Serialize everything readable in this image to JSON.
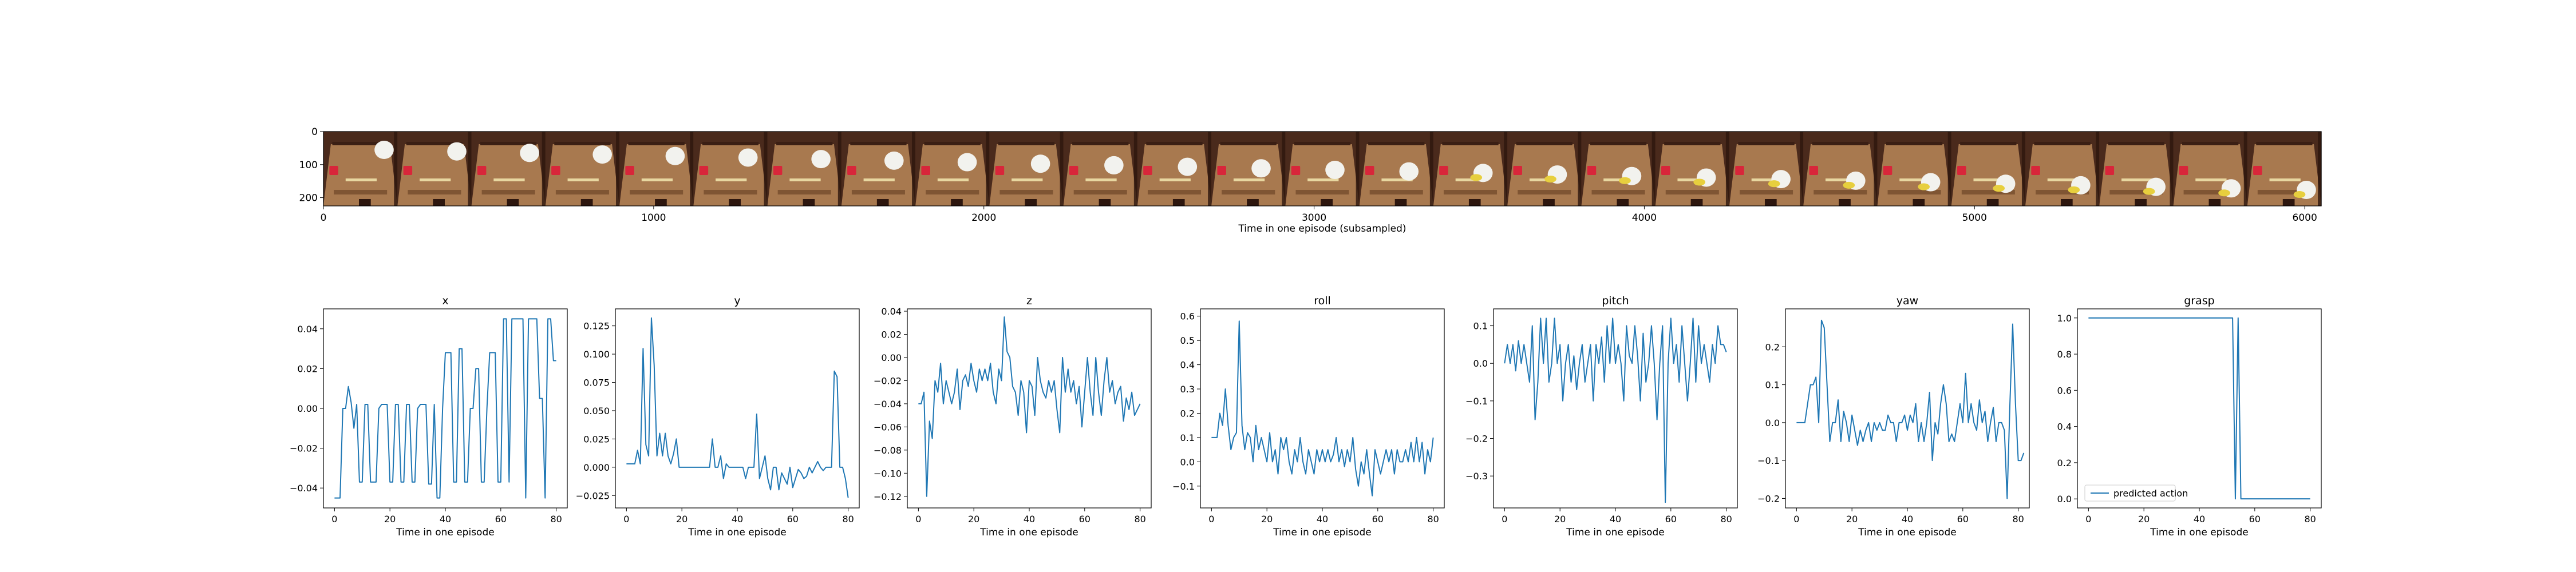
{
  "filmstrip": {
    "xlabel": "Time in one episode (subsampled)",
    "x_ticks": [
      0,
      1000,
      2000,
      3000,
      4000,
      5000,
      6000
    ],
    "y_ticks": [
      0,
      100,
      200
    ],
    "xlim": [
      0,
      6050
    ],
    "ylim": [
      0,
      225
    ],
    "frame_count": 27,
    "colors": {
      "wall": "#4a2a1c",
      "table": "#a8794f",
      "table_dark": "#7f5533",
      "rail": "#3b1f14",
      "cube": "#d8263a",
      "cloth": "#f2f2ee",
      "shadow": "#2d160e",
      "banana": "#e7cf3e"
    }
  },
  "chart_data": [
    {
      "type": "line",
      "title": "x",
      "xlabel": "Time in one episode",
      "ylabel": "",
      "xlim": [
        -4,
        84
      ],
      "ylim": [
        -0.05,
        0.05
      ],
      "x_ticks": [
        0,
        20,
        40,
        60,
        80
      ],
      "y_ticks": [
        -0.04,
        -0.02,
        0.0,
        0.02,
        0.04
      ],
      "y_tick_labels": [
        "−0.04",
        "−0.02",
        "0.00",
        "0.02",
        "0.04"
      ],
      "series": [
        {
          "values": [
            -0.045,
            -0.045,
            -0.045,
            0.0,
            0.0,
            0.011,
            0.003,
            -0.01,
            0.002,
            -0.037,
            -0.037,
            0.002,
            0.002,
            -0.037,
            -0.037,
            -0.037,
            0.0,
            0.002,
            0.002,
            0.002,
            -0.037,
            -0.037,
            0.002,
            0.002,
            -0.037,
            -0.037,
            0.002,
            0.002,
            -0.037,
            -0.037,
            0.0,
            0.002,
            0.002,
            0.002,
            -0.038,
            -0.038,
            0.002,
            -0.045,
            -0.045,
            0.0,
            0.028,
            0.028,
            0.028,
            -0.037,
            -0.037,
            0.03,
            0.03,
            -0.037,
            -0.037,
            0.0,
            0.0,
            0.02,
            0.02,
            -0.037,
            -0.037,
            0.0,
            0.028,
            0.028,
            0.028,
            -0.037,
            -0.037,
            0.045,
            0.045,
            -0.037,
            0.045,
            0.045,
            0.045,
            0.045,
            0.045,
            -0.045,
            0.045,
            0.045,
            0.045,
            0.045,
            0.005,
            0.005,
            -0.045,
            0.045,
            0.045,
            0.024,
            0.024
          ]
        }
      ]
    },
    {
      "type": "line",
      "title": "y",
      "xlabel": "Time in one episode",
      "ylabel": "",
      "xlim": [
        -4,
        84
      ],
      "ylim": [
        -0.036,
        0.14
      ],
      "x_ticks": [
        0,
        20,
        40,
        60,
        80
      ],
      "y_ticks": [
        -0.025,
        0.0,
        0.025,
        0.05,
        0.075,
        0.1,
        0.125
      ],
      "y_tick_labels": [
        "−0.025",
        "0.000",
        "0.025",
        "0.050",
        "0.075",
        "0.100",
        "0.125"
      ],
      "series": [
        {
          "values": [
            0.003,
            0.003,
            0.003,
            0.003,
            0.015,
            0.003,
            0.105,
            0.02,
            0.01,
            0.132,
            0.09,
            0.01,
            0.03,
            0.01,
            0.03,
            0.01,
            0.003,
            0.012,
            0.025,
            0.0,
            0.0,
            0.0,
            0.0,
            0.0,
            0.0,
            0.0,
            0.0,
            0.0,
            0.0,
            0.0,
            0.0,
            0.025,
            0.0,
            0.0,
            0.01,
            -0.01,
            0.003,
            0.0,
            0.0,
            0.0,
            0.0,
            0.0,
            0.0,
            -0.01,
            0.0,
            0.0,
            0.0,
            0.047,
            -0.01,
            0.0,
            0.01,
            -0.01,
            -0.02,
            0.0,
            0.0,
            -0.02,
            -0.005,
            -0.01,
            -0.015,
            0.0,
            -0.018,
            -0.01,
            -0.002,
            -0.005,
            -0.01,
            -0.008,
            0.0,
            -0.005,
            0.0,
            0.005,
            0.0,
            -0.003,
            0.0,
            0.0,
            0.0,
            0.085,
            0.08,
            0.0,
            0.0,
            -0.01,
            -0.027
          ]
        }
      ]
    },
    {
      "type": "line",
      "title": "z",
      "xlabel": "Time in one episode",
      "ylabel": "",
      "xlim": [
        -4,
        84
      ],
      "ylim": [
        -0.13,
        0.042
      ],
      "x_ticks": [
        0,
        20,
        40,
        60,
        80
      ],
      "y_ticks": [
        -0.12,
        -0.1,
        -0.08,
        -0.06,
        -0.04,
        -0.02,
        0.0,
        0.02,
        0.04
      ],
      "y_tick_labels": [
        "−0.12",
        "−0.10",
        "−0.08",
        "−0.06",
        "−0.04",
        "−0.02",
        "0.00",
        "0.02",
        "0.04"
      ],
      "series": [
        {
          "values": [
            -0.04,
            -0.04,
            -0.03,
            -0.12,
            -0.055,
            -0.07,
            -0.02,
            -0.03,
            -0.005,
            -0.04,
            -0.02,
            -0.03,
            -0.04,
            -0.03,
            -0.01,
            -0.045,
            -0.02,
            -0.015,
            -0.025,
            -0.005,
            -0.02,
            -0.03,
            -0.01,
            -0.02,
            -0.01,
            -0.02,
            -0.005,
            -0.03,
            -0.04,
            -0.01,
            -0.02,
            0.035,
            0.005,
            0.0,
            -0.025,
            -0.03,
            -0.05,
            -0.02,
            -0.03,
            -0.065,
            -0.02,
            -0.025,
            -0.05,
            0.0,
            -0.02,
            -0.03,
            -0.035,
            -0.02,
            -0.03,
            -0.02,
            -0.045,
            -0.065,
            0.0,
            -0.03,
            -0.01,
            -0.03,
            -0.02,
            -0.04,
            -0.025,
            -0.06,
            -0.03,
            0.0,
            -0.03,
            -0.05,
            0.0,
            -0.03,
            -0.05,
            -0.02,
            0.0,
            -0.03,
            -0.02,
            -0.04,
            -0.03,
            -0.025,
            -0.055,
            -0.035,
            -0.045,
            -0.03,
            -0.05,
            -0.045,
            -0.04
          ]
        }
      ]
    },
    {
      "type": "line",
      "title": "roll",
      "xlabel": "Time in one episode",
      "ylabel": "",
      "xlim": [
        -4,
        84
      ],
      "ylim": [
        -0.19,
        0.63
      ],
      "x_ticks": [
        0,
        20,
        40,
        60,
        80
      ],
      "y_ticks": [
        -0.1,
        0.0,
        0.1,
        0.2,
        0.3,
        0.4,
        0.5,
        0.6
      ],
      "y_tick_labels": [
        "−0.1",
        "0.0",
        "0.1",
        "0.2",
        "0.3",
        "0.4",
        "0.5",
        "0.6"
      ],
      "series": [
        {
          "values": [
            0.1,
            0.1,
            0.1,
            0.2,
            0.15,
            0.3,
            0.15,
            0.05,
            0.1,
            0.12,
            0.58,
            0.15,
            0.05,
            0.12,
            0.1,
            0.0,
            0.15,
            0.05,
            0.1,
            0.05,
            0.0,
            0.12,
            0.0,
            0.05,
            -0.05,
            0.1,
            0.05,
            0.1,
            0.0,
            -0.05,
            0.05,
            0.0,
            0.1,
            0.0,
            -0.05,
            0.05,
            0.0,
            -0.05,
            0.05,
            0.0,
            0.05,
            0.0,
            0.05,
            0.0,
            0.03,
            0.1,
            0.0,
            0.05,
            -0.02,
            0.05,
            0.0,
            0.1,
            -0.03,
            -0.1,
            0.0,
            -0.05,
            0.05,
            -0.05,
            -0.14,
            0.05,
            0.0,
            -0.05,
            0.0,
            0.05,
            0.0,
            0.05,
            -0.05,
            0.05,
            0.0,
            0.0,
            0.05,
            0.0,
            0.08,
            0.0,
            0.1,
            0.0,
            0.08,
            -0.05,
            0.05,
            0.0,
            0.1
          ]
        }
      ]
    },
    {
      "type": "line",
      "title": "pitch",
      "xlabel": "Time in one episode",
      "ylabel": "",
      "xlim": [
        -4,
        84
      ],
      "ylim": [
        -0.385,
        0.145
      ],
      "x_ticks": [
        0,
        20,
        40,
        60,
        80
      ],
      "y_ticks": [
        -0.3,
        -0.2,
        -0.1,
        0.0,
        0.1
      ],
      "y_tick_labels": [
        "−0.3",
        "−0.2",
        "−0.1",
        "0.0",
        "0.1"
      ],
      "series": [
        {
          "values": [
            0.0,
            0.05,
            0.0,
            0.05,
            -0.02,
            0.06,
            0.0,
            0.05,
            0.0,
            -0.05,
            0.1,
            -0.15,
            -0.05,
            0.12,
            0.0,
            0.12,
            -0.05,
            0.0,
            0.12,
            0.0,
            0.05,
            -0.1,
            0.0,
            0.05,
            -0.05,
            0.02,
            -0.07,
            0.0,
            0.05,
            -0.05,
            0.0,
            0.05,
            -0.1,
            0.05,
            0.0,
            0.07,
            -0.05,
            0.1,
            0.0,
            0.12,
            0.0,
            0.05,
            0.0,
            -0.1,
            0.1,
            0.02,
            0.0,
            0.1,
            0.02,
            -0.1,
            0.08,
            -0.05,
            0.0,
            0.1,
            0.0,
            -0.15,
            0.0,
            0.1,
            -0.37,
            0.0,
            0.12,
            0.0,
            0.05,
            -0.05,
            0.1,
            0.0,
            -0.1,
            0.0,
            0.12,
            -0.05,
            0.1,
            0.0,
            0.05,
            0.0,
            -0.05,
            0.05,
            0.0,
            0.1,
            0.05,
            0.05,
            0.03
          ]
        }
      ]
    },
    {
      "type": "line",
      "title": "yaw",
      "xlabel": "Time in one episode",
      "ylabel": "",
      "xlim": [
        -4,
        84
      ],
      "ylim": [
        -0.225,
        0.3
      ],
      "x_ticks": [
        0,
        20,
        40,
        60,
        80
      ],
      "y_ticks": [
        -0.2,
        -0.1,
        0.0,
        0.1,
        0.2
      ],
      "y_tick_labels": [
        "−0.2",
        "−0.1",
        "0.0",
        "0.1",
        "0.2"
      ],
      "series": [
        {
          "values": [
            0.0,
            0.0,
            0.0,
            0.0,
            0.05,
            0.1,
            0.1,
            0.12,
            0.0,
            0.27,
            0.25,
            0.1,
            -0.05,
            0.0,
            0.0,
            0.06,
            -0.05,
            0.03,
            0.0,
            -0.05,
            0.02,
            -0.02,
            -0.06,
            -0.02,
            -0.05,
            -0.02,
            0.0,
            -0.05,
            0.0,
            -0.02,
            0.0,
            -0.02,
            -0.02,
            0.02,
            0.0,
            0.0,
            -0.05,
            0.0,
            0.0,
            0.02,
            -0.02,
            0.02,
            0.0,
            0.05,
            -0.05,
            0.0,
            -0.05,
            0.0,
            0.08,
            -0.1,
            0.0,
            -0.03,
            0.05,
            0.1,
            0.05,
            -0.05,
            -0.03,
            -0.05,
            0.0,
            0.05,
            0.0,
            0.13,
            0.0,
            0.05,
            0.0,
            -0.02,
            0.06,
            0.0,
            0.03,
            -0.05,
            0.0,
            0.04,
            -0.05,
            0.0,
            0.0,
            -0.02,
            -0.2,
            0.05,
            0.26,
            0.05,
            -0.1,
            -0.1,
            -0.08
          ]
        }
      ]
    },
    {
      "type": "line",
      "title": "grasp",
      "xlabel": "Time in one episode",
      "ylabel": "",
      "xlim": [
        -4,
        84
      ],
      "ylim": [
        -0.05,
        1.05
      ],
      "x_ticks": [
        0,
        20,
        40,
        60,
        80
      ],
      "y_ticks": [
        0.0,
        0.2,
        0.4,
        0.6,
        0.8,
        1.0
      ],
      "y_tick_labels": [
        "0.0",
        "0.2",
        "0.4",
        "0.6",
        "0.8",
        "1.0"
      ],
      "legend": "lower-left",
      "series": [
        {
          "name": "predicted action",
          "values": [
            1,
            1,
            1,
            1,
            1,
            1,
            1,
            1,
            1,
            1,
            1,
            1,
            1,
            1,
            1,
            1,
            1,
            1,
            1,
            1,
            1,
            1,
            1,
            1,
            1,
            1,
            1,
            1,
            1,
            1,
            1,
            1,
            1,
            1,
            1,
            1,
            1,
            1,
            1,
            1,
            1,
            1,
            1,
            1,
            1,
            1,
            1,
            1,
            1,
            1,
            1,
            1,
            1,
            0,
            1,
            0,
            0,
            0,
            0,
            0,
            0,
            0,
            0,
            0,
            0,
            0,
            0,
            0,
            0,
            0,
            0,
            0,
            0,
            0,
            0,
            0,
            0,
            0,
            0,
            0,
            0
          ]
        }
      ]
    }
  ]
}
